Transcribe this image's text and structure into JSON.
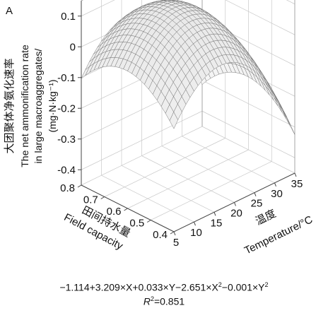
{
  "chart_data": {
    "type": "surface3d",
    "panel_label": "A",
    "zlabel_cn": "大团聚体净氨化速率",
    "zlabel_en_1": "The net ammonification rate",
    "zlabel_en_2": "in large macroaggregates/",
    "zlabel_unit": "(mg·N·kg⁻¹)",
    "xlabel_cn": "田间持水量",
    "xlabel_en": "Field capacity",
    "ylabel_cn": "温度",
    "ylabel_en": "Temperature/°C",
    "x_ticks": [
      "0.4",
      "0.5",
      "0.6",
      "0.7",
      "0.8"
    ],
    "x_tick_values": [
      0.4,
      0.5,
      0.6,
      0.7,
      0.8
    ],
    "y_ticks": [
      "5",
      "10",
      "15",
      "20",
      "25",
      "30",
      "35"
    ],
    "y_tick_values": [
      5,
      10,
      15,
      20,
      25,
      30,
      35
    ],
    "z_ticks": [
      "-0.4",
      "-0.3",
      "-0.2",
      "-0.1",
      "0",
      "0.1"
    ],
    "z_tick_values": [
      -0.4,
      -0.3,
      -0.2,
      -0.1,
      0,
      0.1
    ],
    "xlim": [
      0.4,
      0.8
    ],
    "ylim": [
      5,
      35
    ],
    "zlim": [
      -0.45,
      0.15
    ],
    "coefficients": {
      "intercept": -1.114,
      "x": 3.209,
      "y": 0.033,
      "x2": -2.651,
      "y2": -0.001
    },
    "formula": "−1.114+3.209×X+0.033×Y−2.651×X²−0.001×Y²",
    "r2": "=0.851",
    "r2_symbol": "R",
    "r2_sup": "2",
    "grid": true
  },
  "formula_parts": {
    "p1": "−1.114+3.209×X+0.033×Y−2.651×X",
    "sup1": "2",
    "p2": "−0.001×Y",
    "sup2": "2"
  }
}
